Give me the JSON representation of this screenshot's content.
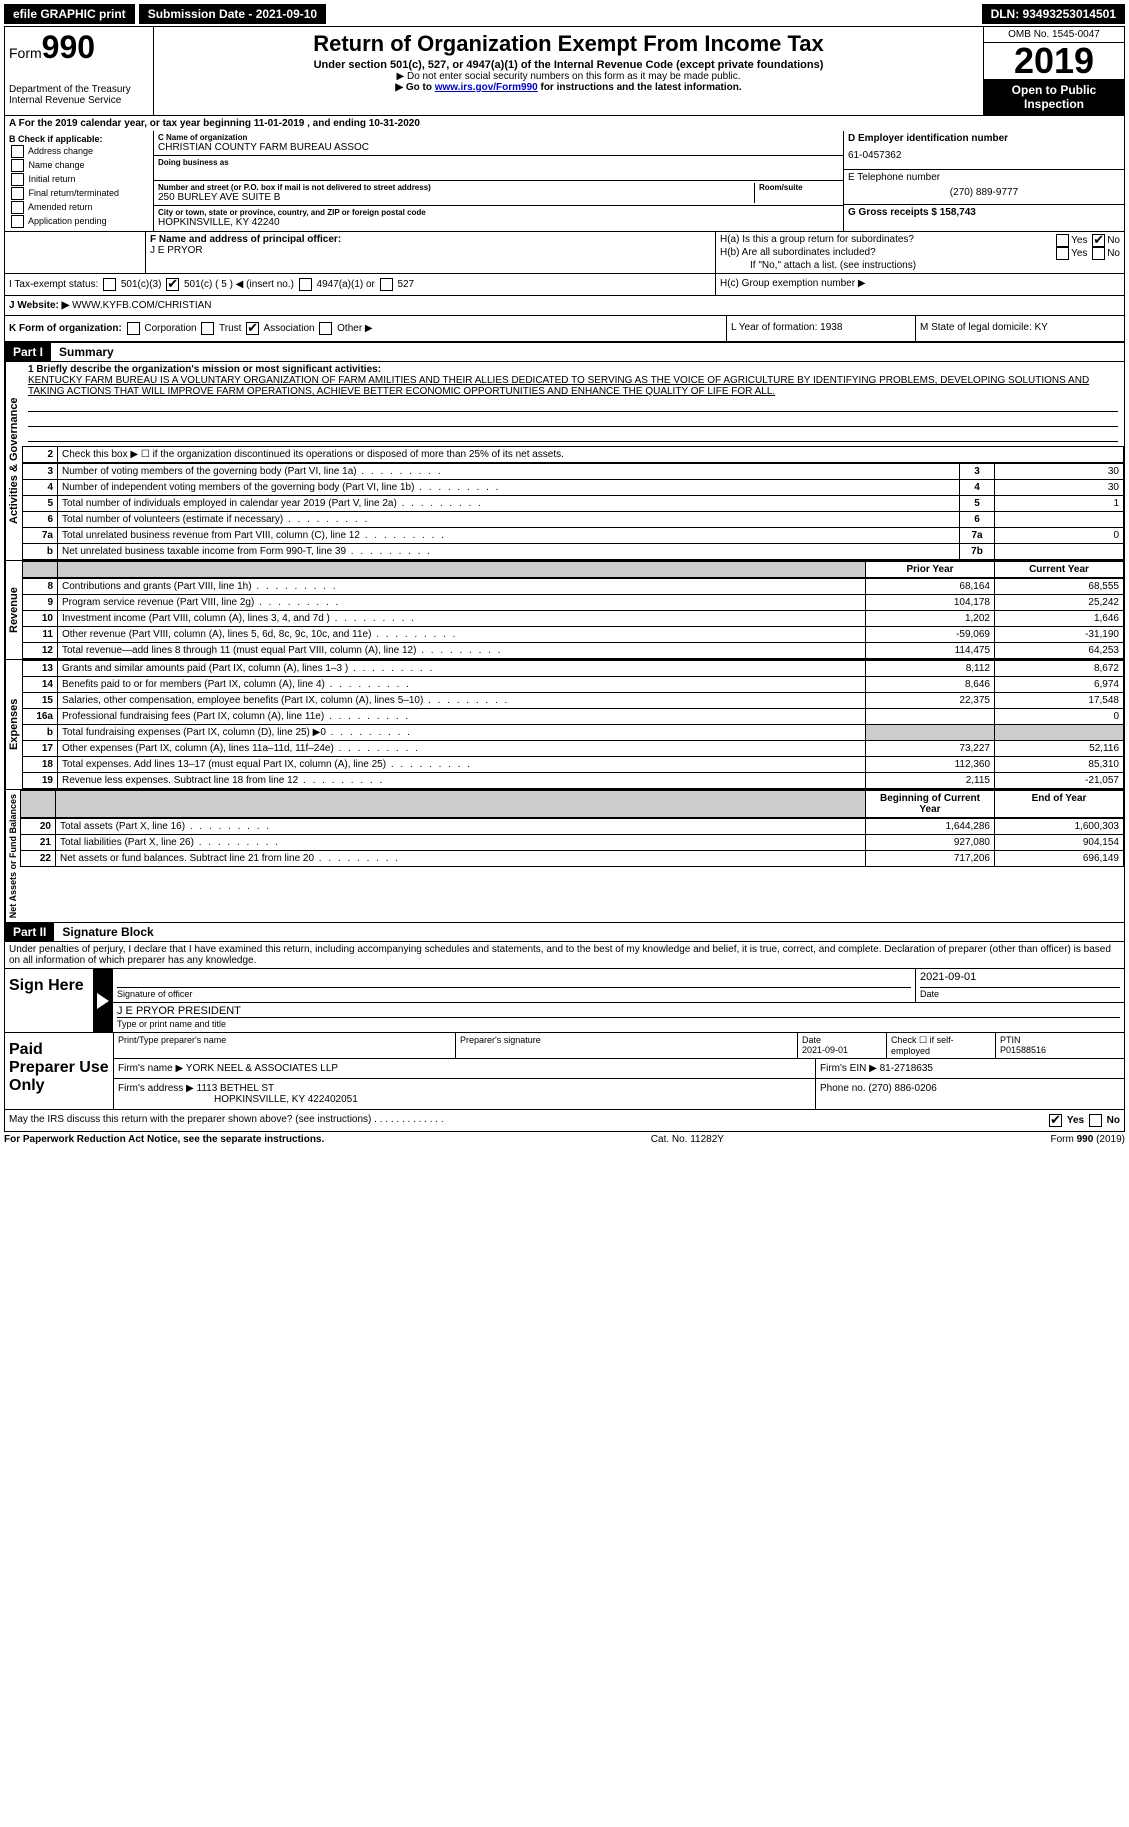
{
  "top": {
    "efile": "efile GRAPHIC print",
    "submission_label": "Submission Date - 2021-09-10",
    "dln_label": "DLN: 93493253014501"
  },
  "header": {
    "form_prefix": "Form",
    "form_number": "990",
    "dept": "Department of the Treasury",
    "irs": "Internal Revenue Service",
    "title": "Return of Organization Exempt From Income Tax",
    "subtitle": "Under section 501(c), 527, or 4947(a)(1) of the Internal Revenue Code (except private foundations)",
    "note1": "▶ Do not enter social security numbers on this form as it may be made public.",
    "note2_pre": "▶ Go to ",
    "note2_link": "www.irs.gov/Form990",
    "note2_post": " for instructions and the latest information.",
    "omb": "OMB No. 1545-0047",
    "year": "2019",
    "open": "Open to Public Inspection"
  },
  "lineA": "A For the 2019 calendar year, or tax year beginning 11-01-2019    , and ending 10-31-2020",
  "colB": {
    "title": "B Check if applicable:",
    "opts": [
      "Address change",
      "Name change",
      "Initial return",
      "Final return/terminated",
      "Amended return",
      "Application pending"
    ]
  },
  "org": {
    "name_label": "C Name of organization",
    "name": "CHRISTIAN COUNTY FARM BUREAU ASSOC",
    "dba_label": "Doing business as",
    "addr_label": "Number and street (or P.O. box if mail is not delivered to street address)",
    "room_label": "Room/suite",
    "addr": "250 BURLEY AVE SUITE B",
    "city_label": "City or town, state or province, country, and ZIP or foreign postal code",
    "city": "HOPKINSVILLE, KY  42240"
  },
  "right": {
    "ein_label": "D Employer identification number",
    "ein": "61-0457362",
    "tel_label": "E Telephone number",
    "tel": "(270) 889-9777",
    "gross_label": "G Gross receipts $ 158,743"
  },
  "f": {
    "label": "F  Name and address of principal officer:",
    "name": "J E PRYOR"
  },
  "h": {
    "a": "H(a)  Is this a group return for subordinates?",
    "b": "H(b)  Are all subordinates included?",
    "note": "If \"No,\" attach a list. (see instructions)",
    "c": "H(c)  Group exemption number ▶",
    "yes": "Yes",
    "no": "No"
  },
  "i": {
    "label": "I   Tax-exempt status:",
    "o1": "501(c)(3)",
    "o2": "501(c) ( 5 ) ◀ (insert no.)",
    "o3": "4947(a)(1) or",
    "o4": "527"
  },
  "j": {
    "label": "J   Website: ▶",
    "val": "  WWW.KYFB.COM/CHRISTIAN"
  },
  "k": {
    "label": "K Form of organization:",
    "o1": "Corporation",
    "o2": "Trust",
    "o3": "Association",
    "o4": "Other ▶"
  },
  "lm": {
    "l": "L Year of formation: 1938",
    "m": "M State of legal domicile: KY"
  },
  "part1": {
    "tag": "Part I",
    "title": "Summary"
  },
  "mission": {
    "q": "1   Briefly describe the organization's mission or most significant activities:",
    "text": "KENTUCKY FARM BUREAU IS A VOLUNTARY ORGANIZATION OF FARM AMILITIES AND THEIR ALLIES DEDICATED TO SERVING AS THE VOICE OF AGRICULTURE BY IDENTIFYING PROBLEMS, DEVELOPING SOLUTIONS AND TAKING ACTIONS THAT WILL IMPROVE FARM OPERATIONS, ACHIEVE BETTER ECONOMIC OPPORTUNITIES AND ENHANCE THE QUALITY OF LIFE FOR ALL."
  },
  "gov": {
    "l2": "Check this box ▶ ☐  if the organization discontinued its operations or disposed of more than 25% of its net assets.",
    "rows": [
      {
        "n": "3",
        "t": "Number of voting members of the governing body (Part VI, line 1a)",
        "b": "3",
        "v": "30"
      },
      {
        "n": "4",
        "t": "Number of independent voting members of the governing body (Part VI, line 1b)",
        "b": "4",
        "v": "30"
      },
      {
        "n": "5",
        "t": "Total number of individuals employed in calendar year 2019 (Part V, line 2a)",
        "b": "5",
        "v": "1"
      },
      {
        "n": "6",
        "t": "Total number of volunteers (estimate if necessary)",
        "b": "6",
        "v": ""
      },
      {
        "n": "7a",
        "t": "Total unrelated business revenue from Part VIII, column (C), line 12",
        "b": "7a",
        "v": "0"
      },
      {
        "n": "b",
        "t": "Net unrelated business taxable income from Form 990-T, line 39",
        "b": "7b",
        "v": ""
      }
    ]
  },
  "cols": {
    "prior": "Prior Year",
    "current": "Current Year"
  },
  "rev": [
    {
      "n": "8",
      "t": "Contributions and grants (Part VIII, line 1h)",
      "p": "68,164",
      "c": "68,555"
    },
    {
      "n": "9",
      "t": "Program service revenue (Part VIII, line 2g)",
      "p": "104,178",
      "c": "25,242"
    },
    {
      "n": "10",
      "t": "Investment income (Part VIII, column (A), lines 3, 4, and 7d )",
      "p": "1,202",
      "c": "1,646"
    },
    {
      "n": "11",
      "t": "Other revenue (Part VIII, column (A), lines 5, 6d, 8c, 9c, 10c, and 11e)",
      "p": "-59,069",
      "c": "-31,190"
    },
    {
      "n": "12",
      "t": "Total revenue—add lines 8 through 11 (must equal Part VIII, column (A), line 12)",
      "p": "114,475",
      "c": "64,253"
    }
  ],
  "exp": [
    {
      "n": "13",
      "t": "Grants and similar amounts paid (Part IX, column (A), lines 1–3 )",
      "p": "8,112",
      "c": "8,672"
    },
    {
      "n": "14",
      "t": "Benefits paid to or for members (Part IX, column (A), line 4)",
      "p": "8,646",
      "c": "6,974"
    },
    {
      "n": "15",
      "t": "Salaries, other compensation, employee benefits (Part IX, column (A), lines 5–10)",
      "p": "22,375",
      "c": "17,548"
    },
    {
      "n": "16a",
      "t": "Professional fundraising fees (Part IX, column (A), line 11e)",
      "p": "",
      "c": "0"
    },
    {
      "n": "b",
      "t": "Total fundraising expenses (Part IX, column (D), line 25) ▶0",
      "p": "shade",
      "c": "shade"
    },
    {
      "n": "17",
      "t": "Other expenses (Part IX, column (A), lines 11a–11d, 11f–24e)",
      "p": "73,227",
      "c": "52,116"
    },
    {
      "n": "18",
      "t": "Total expenses. Add lines 13–17 (must equal Part IX, column (A), line 25)",
      "p": "112,360",
      "c": "85,310"
    },
    {
      "n": "19",
      "t": "Revenue less expenses. Subtract line 18 from line 12",
      "p": "2,115",
      "c": "-21,057"
    }
  ],
  "cols2": {
    "beg": "Beginning of Current Year",
    "end": "End of Year"
  },
  "net": [
    {
      "n": "20",
      "t": "Total assets (Part X, line 16)",
      "p": "1,644,286",
      "c": "1,600,303"
    },
    {
      "n": "21",
      "t": "Total liabilities (Part X, line 26)",
      "p": "927,080",
      "c": "904,154"
    },
    {
      "n": "22",
      "t": "Net assets or fund balances. Subtract line 21 from line 20",
      "p": "717,206",
      "c": "696,149"
    }
  ],
  "sections": {
    "gov": "Activities & Governance",
    "rev": "Revenue",
    "exp": "Expenses",
    "net": "Net Assets or Fund Balances"
  },
  "part2": {
    "tag": "Part II",
    "title": "Signature Block"
  },
  "perjury": "Under penalties of perjury, I declare that I have examined this return, including accompanying schedules and statements, and to the best of my knowledge and belief, it is true, correct, and complete. Declaration of preparer (other than officer) is based on all information of which preparer has any knowledge.",
  "sign": {
    "here": "Sign Here",
    "sig_officer": "Signature of officer",
    "date": "Date",
    "date_val": "2021-09-01",
    "name": "J E PRYOR PRESIDENT",
    "name_label": "Type or print name and title"
  },
  "paid": {
    "label": "Paid Preparer Use Only",
    "h1": "Print/Type preparer's name",
    "h2": "Preparer's signature",
    "h3": "Date",
    "h3v": "2021-09-01",
    "h4": "Check ☐ if self-employed",
    "h5": "PTIN",
    "h5v": "P01588516",
    "firm_name_l": "Firm's name    ▶",
    "firm_name": "YORK NEEL & ASSOCIATES LLP",
    "firm_ein_l": "Firm's EIN ▶",
    "firm_ein": "81-2718635",
    "firm_addr_l": "Firm's address ▶",
    "firm_addr": "1113 BETHEL ST",
    "firm_city": "HOPKINSVILLE, KY  422402051",
    "phone_l": "Phone no.",
    "phone": "(270) 886-0206"
  },
  "may": "May the IRS discuss this return with the preparer shown above? (see instructions)",
  "footer": {
    "l": "For Paperwork Reduction Act Notice, see the separate instructions.",
    "m": "Cat. No. 11282Y",
    "r": "Form 990 (2019)"
  }
}
